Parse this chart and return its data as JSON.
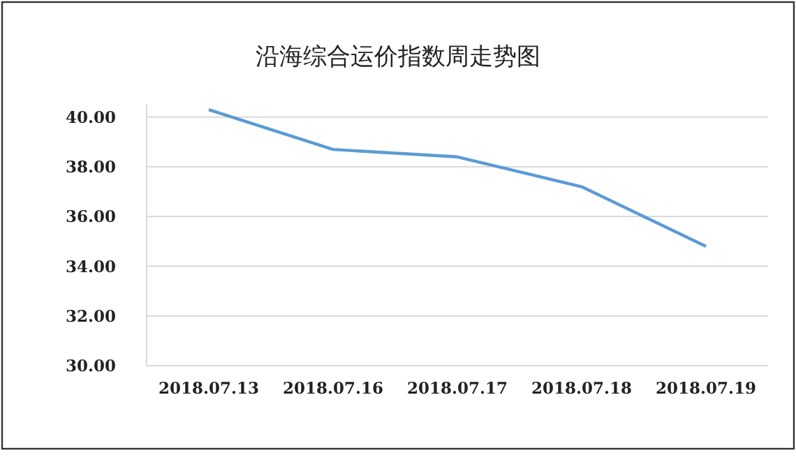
{
  "chart_data": {
    "type": "line",
    "title": "沿海综合运价指数周走势图",
    "categories": [
      "2018.07.13",
      "2018.07.16",
      "2018.07.17",
      "2018.07.18",
      "2018.07.19"
    ],
    "series": [
      {
        "color": "#5b9bd5",
        "values": [
          40.3,
          38.7,
          38.4,
          37.2,
          34.8
        ]
      }
    ],
    "ylim": [
      30,
      40.5
    ],
    "yticks": [
      {
        "value": 30,
        "label": "30.00"
      },
      {
        "value": 32,
        "label": "32.00"
      },
      {
        "value": 34,
        "label": "34.00"
      },
      {
        "value": 36,
        "label": "36.00"
      },
      {
        "value": 38,
        "label": "38.00"
      },
      {
        "value": 40,
        "label": "40.00"
      }
    ],
    "grid": "y",
    "marker": "none",
    "line_style": "solid"
  }
}
